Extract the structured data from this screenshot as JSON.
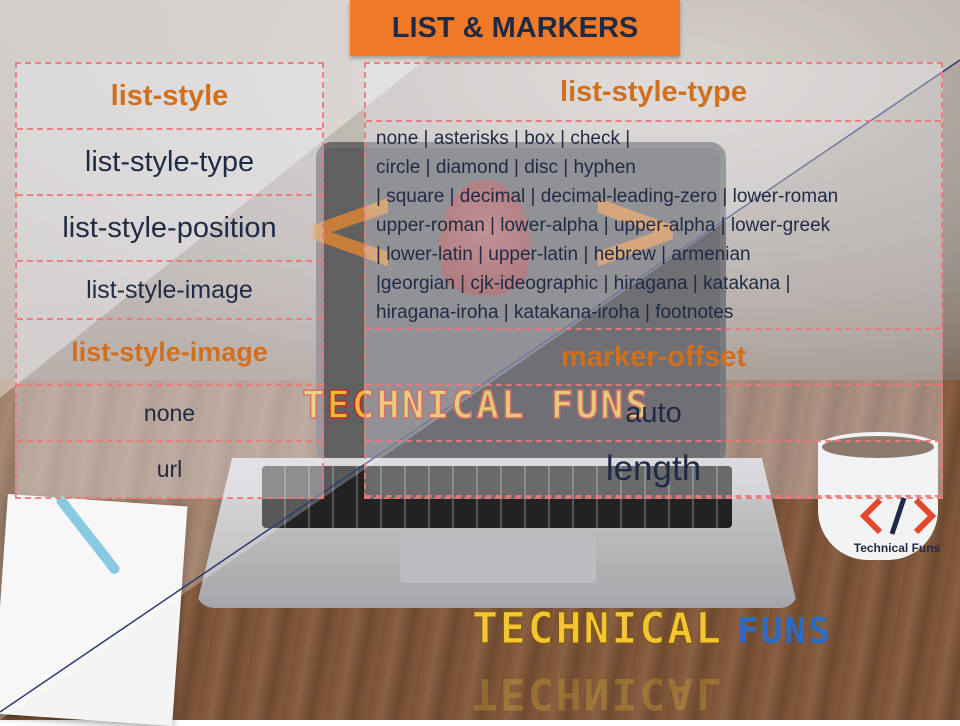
{
  "title": "LIST & MARKERS",
  "left_table": {
    "rows": [
      {
        "text": "list-style",
        "header": true
      },
      {
        "text": "list-style-type"
      },
      {
        "text": "list-style-position"
      },
      {
        "text": "list-style-image"
      },
      {
        "text": "list-style-image",
        "header": true
      },
      {
        "text": "none"
      },
      {
        "text": "url"
      }
    ]
  },
  "right_table": {
    "type_header": "list-style-type",
    "type_values_lines": [
      "none | asterisks | box | check |",
      "circle | diamond | disc | hyphen",
      "| square | decimal | decimal-leading-zero | lower-roman",
      "upper-roman | lower-alpha | upper-alpha | lower-greek",
      "| lower-latin | upper-latin | hebrew | armenian",
      "|georgian | cjk-ideographic | hiragana | katakana |",
      "hiragana-iroha | katakana-iroha | footnotes"
    ],
    "offset_header": "marker-offset",
    "offset_values": [
      "auto",
      "length"
    ]
  },
  "watermark_text": "TECHNICAL FUNS",
  "brand": {
    "small_label": "Technical Funs",
    "big_word_1": "TECHNICAL",
    "big_word_2": "FUNS"
  },
  "colors": {
    "title_bg": "#f07a28",
    "header_text": "#d0701e",
    "body_text": "#1f2a44",
    "dashed_border": "#ec7878"
  }
}
